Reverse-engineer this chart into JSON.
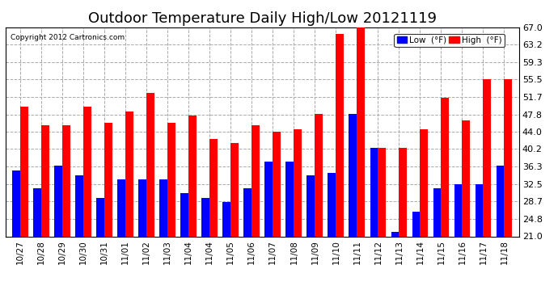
{
  "title": "Outdoor Temperature Daily High/Low 20121119",
  "copyright": "Copyright 2012 Cartronics.com",
  "labels": [
    "10/27",
    "10/28",
    "10/29",
    "10/30",
    "10/31",
    "11/01",
    "11/02",
    "11/03",
    "11/04",
    "11/04",
    "11/05",
    "11/06",
    "11/07",
    "11/08",
    "11/09",
    "11/10",
    "11/11",
    "11/12",
    "11/13",
    "11/14",
    "11/15",
    "11/16",
    "11/17",
    "11/18"
  ],
  "high": [
    49.5,
    45.5,
    45.5,
    49.5,
    46.0,
    48.5,
    52.5,
    46.0,
    47.5,
    42.5,
    41.5,
    45.5,
    44.0,
    44.5,
    48.0,
    65.5,
    67.0,
    40.5,
    40.5,
    44.5,
    51.5,
    46.5,
    55.5,
    55.5
  ],
  "low": [
    35.5,
    31.5,
    36.5,
    34.5,
    29.5,
    33.5,
    33.5,
    33.5,
    30.5,
    29.5,
    28.5,
    31.5,
    37.5,
    37.5,
    34.5,
    35.0,
    48.0,
    40.5,
    22.0,
    26.5,
    31.5,
    32.5,
    32.5,
    36.5
  ],
  "high_color": "#ff0000",
  "low_color": "#0000ff",
  "bg_color": "#ffffff",
  "grid_color": "#aaaaaa",
  "yticks": [
    21.0,
    24.8,
    28.7,
    32.5,
    36.3,
    40.2,
    44.0,
    47.8,
    51.7,
    55.5,
    59.3,
    63.2,
    67.0
  ],
  "ymin": 21.0,
  "ymax": 67.0,
  "title_fontsize": 13,
  "legend_low_label": "Low  (°F)",
  "legend_high_label": "High  (°F)"
}
